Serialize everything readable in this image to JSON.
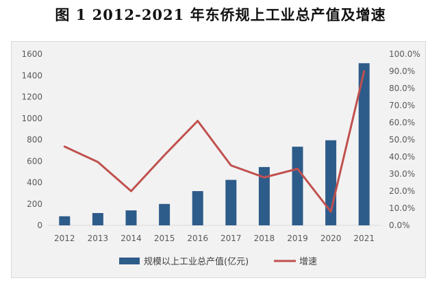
{
  "title": "图 1   2012-2021 年东侨规上工业总产值及增速",
  "chart_data": {
    "type": "bar",
    "categories": [
      "2012",
      "2013",
      "2014",
      "2015",
      "2016",
      "2017",
      "2018",
      "2019",
      "2020",
      "2021"
    ],
    "series": [
      {
        "name": "规模以上工业总产值(亿元)",
        "type": "bar",
        "axis": "left",
        "values": [
          85,
          115,
          140,
          200,
          320,
          425,
          545,
          735,
          795,
          1515
        ]
      },
      {
        "name": "增速",
        "type": "line",
        "axis": "right",
        "values": [
          46.0,
          37.0,
          20.0,
          41.0,
          61.0,
          35.0,
          28.0,
          33.0,
          8.0,
          90.0
        ]
      }
    ],
    "left_axis": {
      "ticks": [
        "0",
        "200",
        "400",
        "600",
        "800",
        "1000",
        "1200",
        "1400",
        "1600"
      ],
      "ylim": [
        0,
        1600
      ]
    },
    "right_axis": {
      "ticks": [
        "0.0%",
        "10.0%",
        "20.0%",
        "30.0%",
        "40.0%",
        "50.0%",
        "60.0%",
        "70.0%",
        "80.0%",
        "90.0%",
        "100.0%"
      ],
      "ylim": [
        0,
        100
      ]
    },
    "legend": "bottom",
    "grid": false,
    "colors": {
      "bar": "#2e5c8a",
      "line": "#c0504d"
    }
  }
}
